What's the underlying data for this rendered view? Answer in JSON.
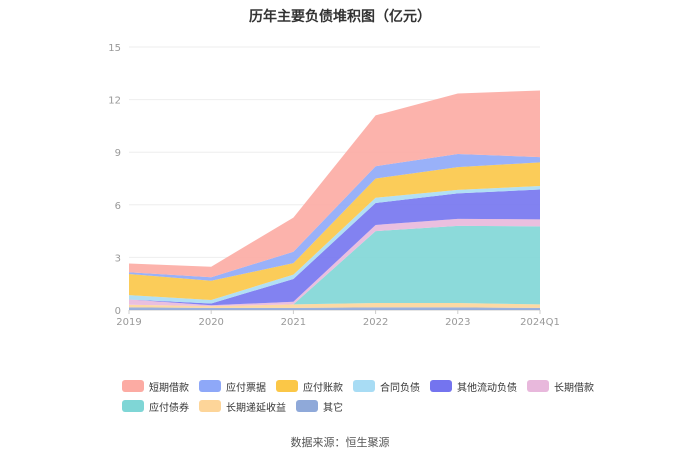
{
  "title": "历年主要负债堆积图（亿元）",
  "source": "数据来源：恒生聚源",
  "chart_data": {
    "type": "area",
    "stacked": true,
    "categories": [
      "2019",
      "2020",
      "2021",
      "2022",
      "2023",
      "2024Q1"
    ],
    "ylim": [
      0,
      15
    ],
    "yticks": [
      0,
      3,
      6,
      9,
      12,
      15
    ],
    "grid": true,
    "legend_position": "bottom",
    "series": [
      {
        "name": "其它",
        "color": "#8fa9d9",
        "values": [
          0.15,
          0.12,
          0.12,
          0.15,
          0.15,
          0.12
        ]
      },
      {
        "name": "长期递延收益",
        "color": "#fdd599",
        "values": [
          0.15,
          0.1,
          0.2,
          0.25,
          0.25,
          0.2
        ]
      },
      {
        "name": "应付债券",
        "color": "#7fd6d6",
        "values": [
          0,
          0,
          0,
          4.1,
          4.4,
          4.45
        ]
      },
      {
        "name": "长期借款",
        "color": "#e8b8dc",
        "values": [
          0.3,
          0.05,
          0.15,
          0.35,
          0.4,
          0.4
        ]
      },
      {
        "name": "其他流动负债",
        "color": "#7474ef",
        "values": [
          0,
          0.1,
          1.3,
          1.25,
          1.45,
          1.7
        ]
      },
      {
        "name": "合同负债",
        "color": "#a8dcf4",
        "values": [
          0.25,
          0.2,
          0.25,
          0.3,
          0.2,
          0.2
        ]
      },
      {
        "name": "应付账款",
        "color": "#fbc747",
        "values": [
          1.2,
          1.1,
          0.65,
          1.1,
          1.3,
          1.35
        ]
      },
      {
        "name": "应付票据",
        "color": "#8ea8f8",
        "values": [
          0.1,
          0.2,
          0.65,
          0.7,
          0.75,
          0.3
        ]
      },
      {
        "name": "短期借款",
        "color": "#fcaba3",
        "values": [
          0.5,
          0.6,
          1.95,
          2.9,
          3.45,
          3.8
        ]
      }
    ],
    "legend_order": [
      "短期借款",
      "应付票据",
      "应付账款",
      "合同负债",
      "其他流动负债",
      "长期借款",
      "应付债券",
      "长期递延收益",
      "其它"
    ]
  }
}
